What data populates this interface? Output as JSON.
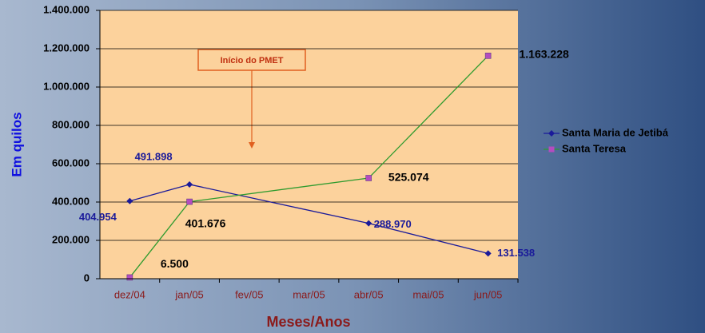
{
  "chart_data": {
    "type": "line",
    "y_axis_label": "Em quilos",
    "x_axis_label": "Meses/Anos",
    "annotation": "Início do PMET",
    "categories": [
      "dez/04",
      "jan/05",
      "fev/05",
      "mar/05",
      "abr/05",
      "mai/05",
      "jun/05"
    ],
    "series": [
      {
        "name": "Santa Maria de Jetibá",
        "color": "#1a1a9a",
        "marker_color": "#1a1a9a",
        "values": [
          404954,
          491898,
          null,
          null,
          288970,
          null,
          131538
        ],
        "value_labels": [
          "404.954",
          "491.898",
          null,
          null,
          "288.970",
          null,
          "131.538"
        ]
      },
      {
        "name": "Santa Teresa",
        "color": "#2e9b2e",
        "marker_color": "#b44cc0",
        "values": [
          6500,
          401676,
          null,
          null,
          525074,
          null,
          1163228
        ],
        "value_labels": [
          "6.500",
          "401.676",
          null,
          null,
          "525.074",
          null,
          "1.163.228"
        ]
      }
    ],
    "ylim": [
      0,
      1400000
    ],
    "yticks": [
      0,
      {
        "value": 200000,
        "label": "200.000"
      },
      {
        "value": 400000,
        "label": "400.000"
      },
      {
        "value": 600000,
        "label": "600.000"
      },
      {
        "value": 800000,
        "label": "800.000"
      },
      {
        "value": 1000000,
        "label": "1.000.000"
      },
      {
        "value": 1200000,
        "label": "1.200.000"
      },
      {
        "value": 1400000,
        "label": "1.400.000"
      }
    ],
    "grid": true,
    "legend": "right"
  }
}
